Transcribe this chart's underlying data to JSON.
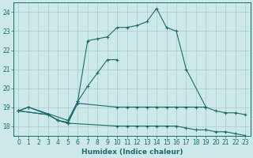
{
  "xlabel": "Humidex (Indice chaleur)",
  "bg_color": "#cce8e8",
  "grid_color": "#aacccc",
  "line_color": "#1a6b6b",
  "xlim": [
    -0.5,
    23.5
  ],
  "ylim": [
    17.5,
    24.5
  ],
  "xticks": [
    0,
    1,
    2,
    3,
    4,
    5,
    6,
    7,
    8,
    9,
    10,
    11,
    12,
    13,
    14,
    15,
    16,
    17,
    18,
    19,
    20,
    21,
    22,
    23
  ],
  "yticks": [
    18,
    19,
    20,
    21,
    22,
    23,
    24
  ],
  "series": [
    {
      "x": [
        0,
        1,
        5,
        6,
        7,
        8,
        9,
        10,
        11,
        12,
        13,
        14,
        15,
        16,
        17,
        19
      ],
      "y": [
        18.8,
        19.0,
        18.3,
        19.3,
        22.5,
        22.6,
        22.7,
        23.2,
        23.2,
        23.3,
        23.5,
        24.2,
        23.2,
        23.0,
        21.0,
        19.0
      ]
    },
    {
      "x": [
        0,
        1,
        3,
        4,
        5,
        6,
        7,
        8,
        9,
        10
      ],
      "y": [
        18.8,
        19.0,
        18.6,
        18.3,
        18.2,
        19.3,
        20.1,
        20.8,
        21.5,
        21.5
      ]
    },
    {
      "x": [
        0,
        3,
        4,
        5,
        6,
        10,
        11,
        12,
        13,
        14,
        15,
        16,
        17,
        18,
        19,
        20,
        21,
        22,
        23
      ],
      "y": [
        18.8,
        18.6,
        18.3,
        18.15,
        19.2,
        19.0,
        19.0,
        19.0,
        19.0,
        19.0,
        19.0,
        19.0,
        19.0,
        19.0,
        19.0,
        18.8,
        18.7,
        18.7,
        18.6
      ]
    },
    {
      "x": [
        0,
        3,
        4,
        5,
        10,
        11,
        12,
        13,
        14,
        15,
        16,
        17,
        18,
        19,
        20,
        21,
        22,
        23
      ],
      "y": [
        18.8,
        18.6,
        18.3,
        18.15,
        18.0,
        18.0,
        18.0,
        18.0,
        18.0,
        18.0,
        18.0,
        17.9,
        17.8,
        17.8,
        17.7,
        17.7,
        17.6,
        17.5
      ]
    }
  ]
}
